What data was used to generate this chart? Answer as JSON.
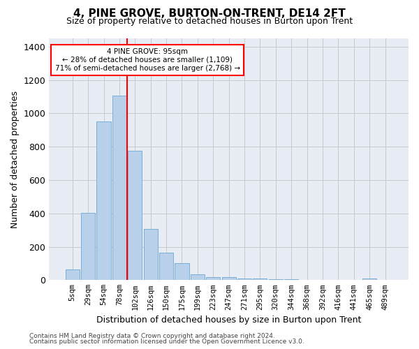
{
  "title": "4, PINE GROVE, BURTON-ON-TRENT, DE14 2FT",
  "subtitle": "Size of property relative to detached houses in Burton upon Trent",
  "xlabel": "Distribution of detached houses by size in Burton upon Trent",
  "ylabel": "Number of detached properties",
  "footnote1": "Contains HM Land Registry data © Crown copyright and database right 2024.",
  "footnote2": "Contains public sector information licensed under the Open Government Licence v3.0.",
  "bar_labels": [
    "5sqm",
    "29sqm",
    "54sqm",
    "78sqm",
    "102sqm",
    "126sqm",
    "150sqm",
    "175sqm",
    "199sqm",
    "223sqm",
    "247sqm",
    "271sqm",
    "295sqm",
    "320sqm",
    "344sqm",
    "368sqm",
    "392sqm",
    "416sqm",
    "441sqm",
    "465sqm",
    "489sqm"
  ],
  "bar_values": [
    65,
    405,
    950,
    1105,
    775,
    305,
    165,
    100,
    35,
    18,
    18,
    10,
    10,
    5,
    5,
    0,
    0,
    0,
    0,
    10,
    0
  ],
  "bar_color": "#b8d0ea",
  "bar_edge_color": "#7aaed6",
  "ylim_max": 1450,
  "yticks": [
    0,
    200,
    400,
    600,
    800,
    1000,
    1200,
    1400
  ],
  "grid_color": "#c8c8c8",
  "bg_color": "#e8edf5",
  "red_line_x": 3.5,
  "annotation_text_line1": "4 PINE GROVE: 95sqm",
  "annotation_text_line2": "← 28% of detached houses are smaller (1,109)",
  "annotation_text_line3": "71% of semi-detached houses are larger (2,768) →"
}
